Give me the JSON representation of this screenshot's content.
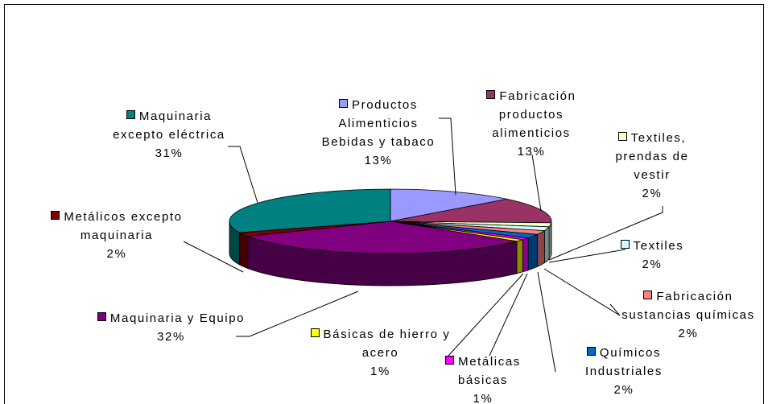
{
  "chart_data": {
    "type": "pie3d",
    "categories": [
      "Productos Alimenticios Bebidas y tabaco",
      "Fabricación productos alimenticios",
      "Textiles, prendas de vestir",
      "Textiles",
      "Fabricación sustancias químicas",
      "Químicos Industriales",
      "Metálicas básicas",
      "Básicas de hierro y acero",
      "Maquinaria y Equipo",
      "Metálicos excepto maquinaria",
      "Maquinaria excepto eléctrica"
    ],
    "values": [
      13,
      13,
      2,
      2,
      2,
      2,
      1,
      1,
      32,
      2,
      31
    ],
    "value_labels": [
      "13%",
      "13%",
      "2%",
      "2%",
      "2%",
      "2%",
      "1%",
      "1%",
      "32%",
      "2%",
      "31%"
    ],
    "colors": [
      "#9999ff",
      "#993366",
      "#ffffcc",
      "#ccffff",
      "#ff8080",
      "#0066cc",
      "#ff00ff",
      "#ffff00",
      "#800080",
      "#800000",
      "#008080"
    ]
  }
}
